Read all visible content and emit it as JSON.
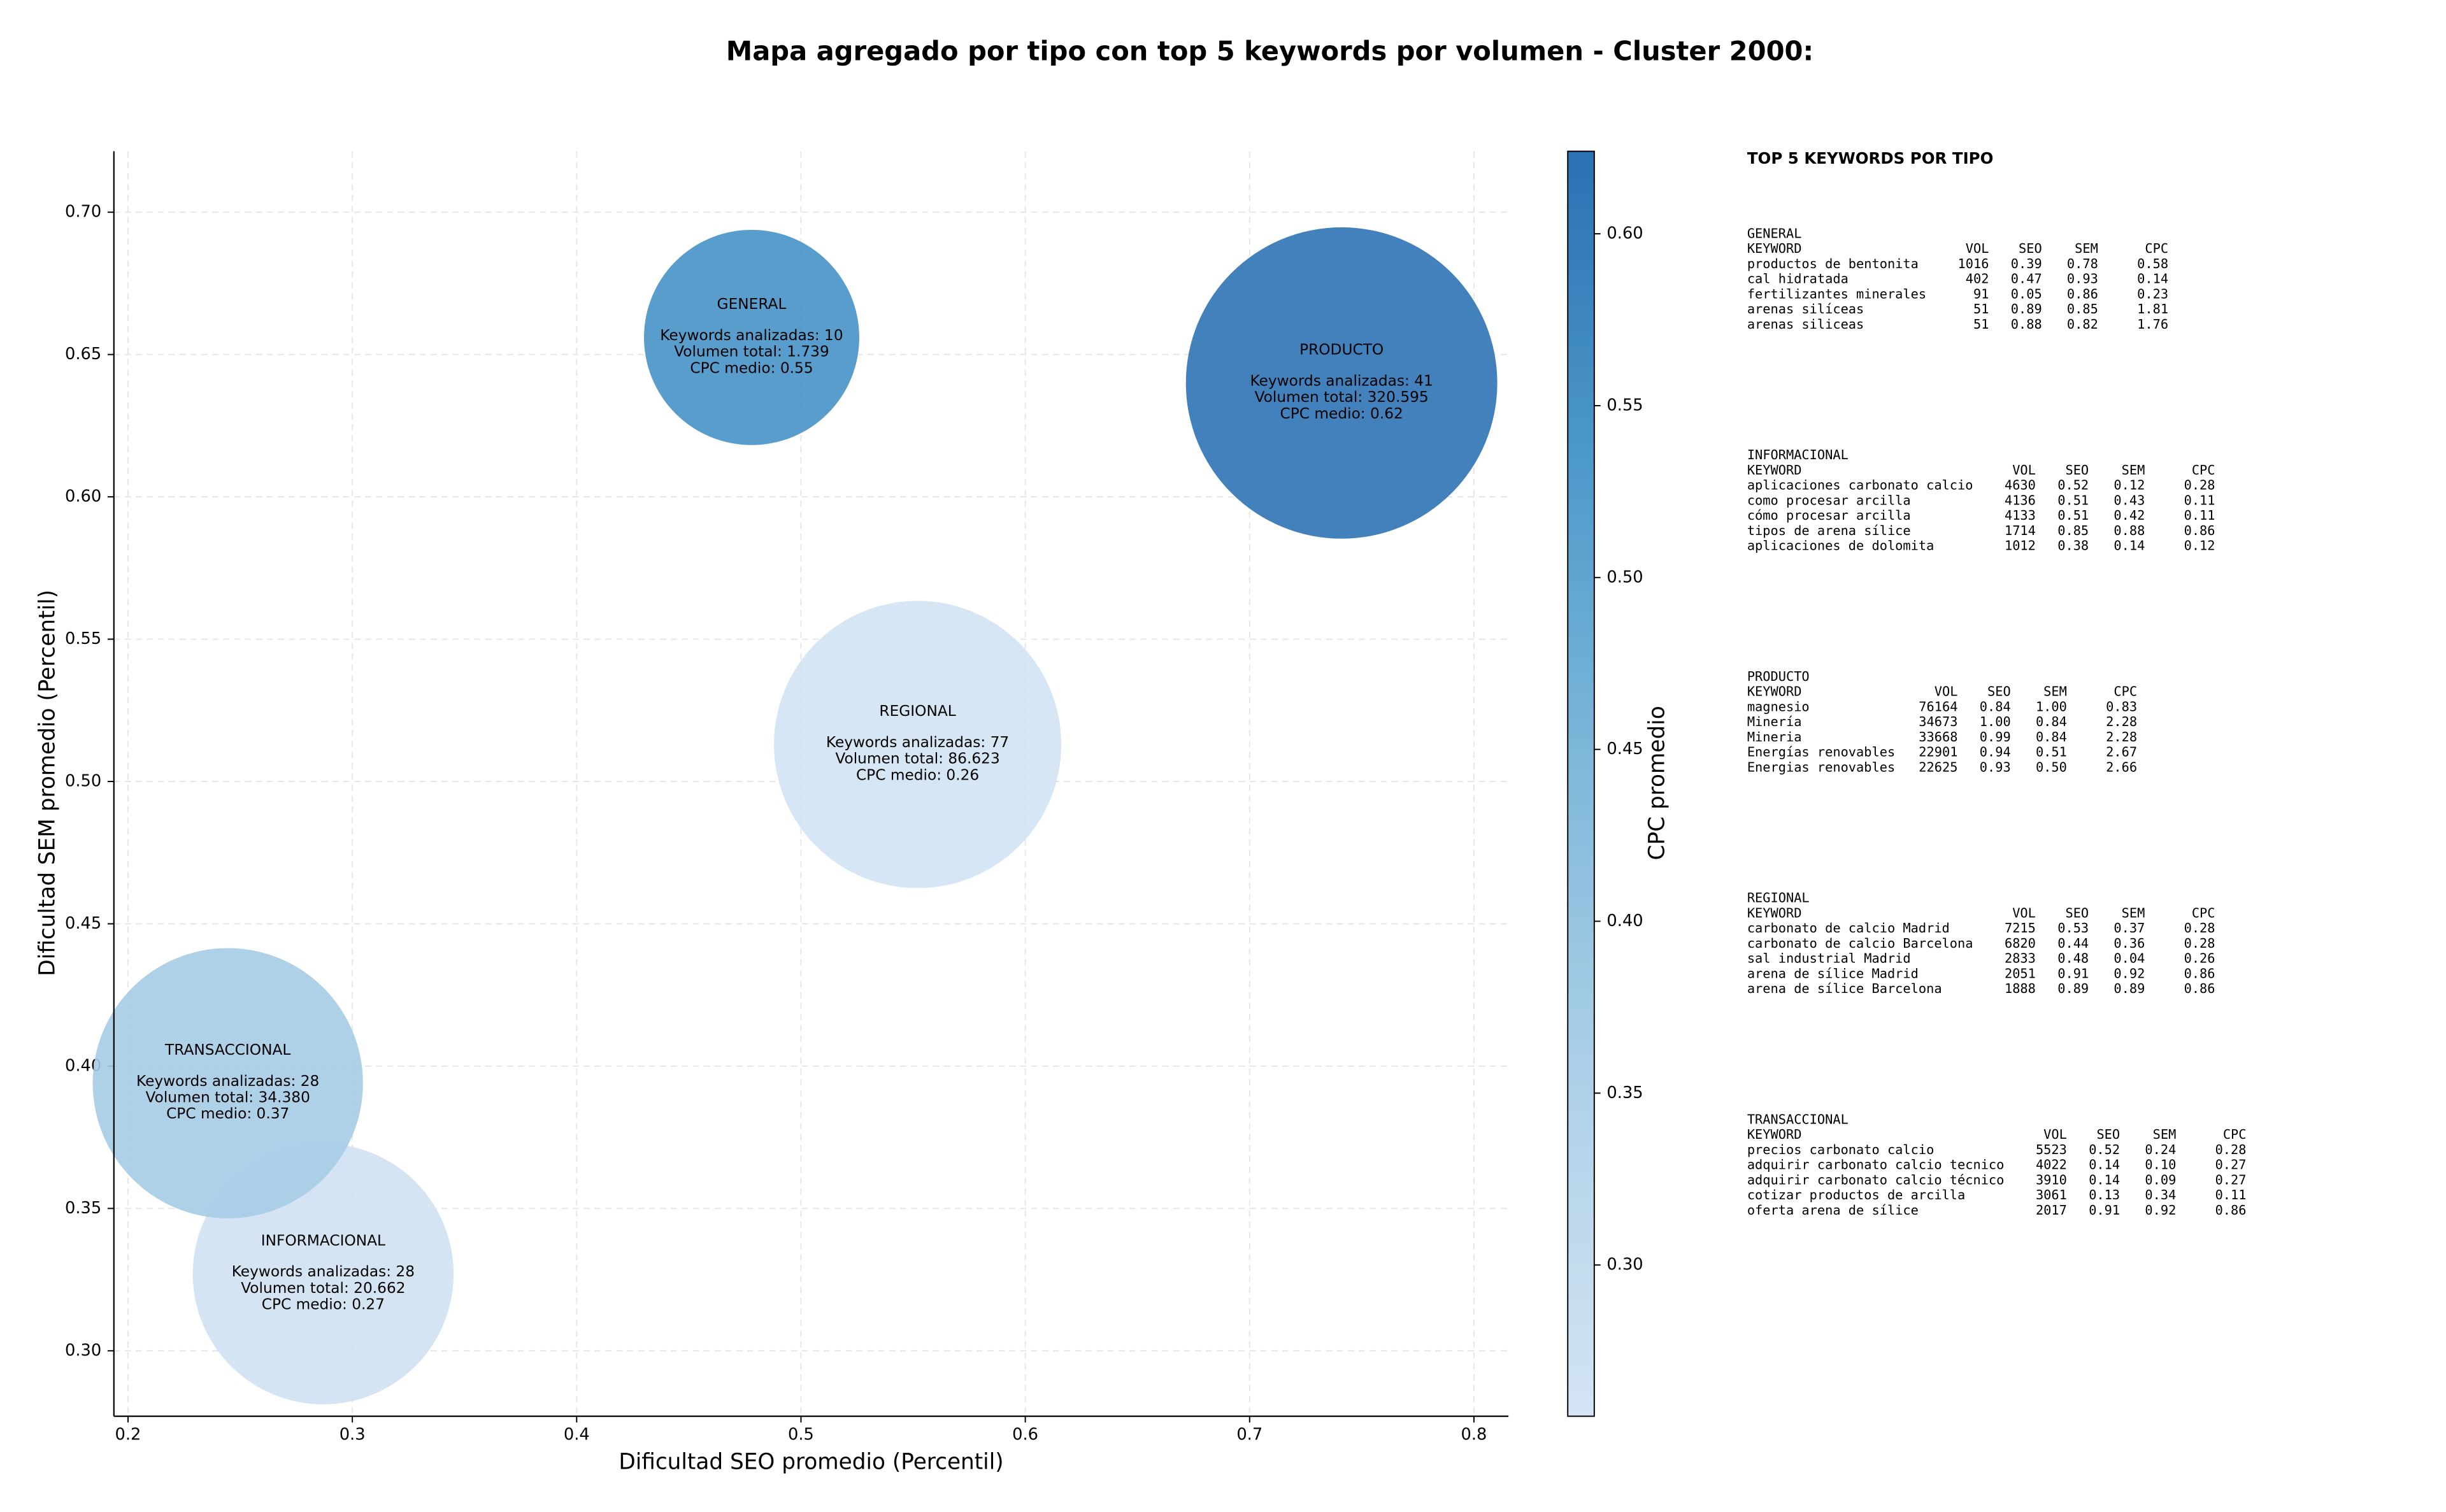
{
  "chart_data": {
    "type": "scatter",
    "title": "Mapa agregado por tipo con top 5 keywords por volumen - Cluster 2000:",
    "x_label": "Dificultad SEO promedio (Percentil)",
    "y_label": "Dificultad SEM promedio (Percentil)",
    "colorbar_label": "CPC promedio",
    "xlim": [
      0.1937,
      0.8154
    ],
    "ylim": [
      0.277,
      0.7214
    ],
    "clim": [
      0.256,
      0.624
    ],
    "xticks": [
      0.2,
      0.3,
      0.4,
      0.5,
      0.6,
      0.7,
      0.8
    ],
    "yticks": [
      {
        "value": 0.3,
        "label": "0.30"
      },
      0.35,
      {
        "value": 0.4,
        "label": "0.40"
      },
      0.45,
      {
        "value": 0.5,
        "label": "0.50"
      },
      0.55,
      {
        "value": 0.6,
        "label": "0.60"
      },
      0.65,
      {
        "value": 0.7,
        "label": "0.70"
      }
    ],
    "cticks": [
      {
        "value": 0.3,
        "label": "0.30"
      },
      0.35,
      {
        "value": 0.4,
        "label": "0.40"
      },
      0.45,
      {
        "value": 0.5,
        "label": "0.50"
      },
      0.55,
      {
        "value": 0.6,
        "label": "0.60"
      }
    ],
    "colorscale": [
      "#d4e4f4",
      "#b0d2e8",
      "#82badb",
      "#4e9acb",
      "#2b71b3"
    ],
    "grid": true,
    "size_scale": "log",
    "points": [
      {
        "name": "GENERAL",
        "x": 0.478,
        "y": 0.656,
        "size": 1739,
        "cpc": 0.55,
        "text": [
          "Keywords analizadas: 10",
          "Volumen total: 1.739",
          "CPC medio: 0.55"
        ]
      },
      {
        "name": "INFORMACIONAL",
        "x": 0.287,
        "y": 0.327,
        "size": 20662,
        "cpc": 0.27,
        "text": [
          "Keywords analizadas: 28",
          "Volumen total: 20.662",
          "CPC medio: 0.27"
        ]
      },
      {
        "name": "PRODUCTO",
        "x": 0.741,
        "y": 0.64,
        "size": 320595,
        "cpc": 0.62,
        "text": [
          "Keywords analizadas: 41",
          "Volumen total: 320.595",
          "CPC medio: 0.62"
        ]
      },
      {
        "name": "REGIONAL",
        "x": 0.552,
        "y": 0.513,
        "size": 86623,
        "cpc": 0.26,
        "text": [
          "Keywords analizadas: 77",
          "Volumen total: 86.623",
          "CPC medio: 0.26"
        ]
      },
      {
        "name": "TRANSACCIONAL",
        "x": 0.2445,
        "y": 0.394,
        "size": 34380,
        "cpc": 0.37,
        "text": [
          "Keywords analizadas: 28",
          "Volumen total: 34.380",
          "CPC medio: 0.37"
        ]
      }
    ]
  },
  "panel": {
    "title": "TOP 5 KEYWORDS POR TIPO",
    "columns": [
      "KEYWORD",
      "VOL",
      "SEO",
      "SEM",
      "CPC"
    ],
    "blocks": [
      {
        "name": "GENERAL",
        "rows": [
          [
            "productos de bentonita",
            "1016",
            "0.39",
            "0.78",
            "0.58"
          ],
          [
            "cal hidratada",
            "402",
            "0.47",
            "0.93",
            "0.14"
          ],
          [
            "fertilizantes minerales",
            "91",
            "0.05",
            "0.86",
            "0.23"
          ],
          [
            "arenas silíceas",
            "51",
            "0.89",
            "0.85",
            "1.81"
          ],
          [
            "arenas siliceas",
            "51",
            "0.88",
            "0.82",
            "1.76"
          ]
        ]
      },
      {
        "name": "INFORMACIONAL",
        "rows": [
          [
            "aplicaciones carbonato calcio",
            "4630",
            "0.52",
            "0.12",
            "0.28"
          ],
          [
            "como procesar arcilla",
            "4136",
            "0.51",
            "0.43",
            "0.11"
          ],
          [
            "cómo procesar arcilla",
            "4133",
            "0.51",
            "0.42",
            "0.11"
          ],
          [
            "tipos de arena sílice",
            "1714",
            "0.85",
            "0.88",
            "0.86"
          ],
          [
            "aplicaciones de dolomita",
            "1012",
            "0.38",
            "0.14",
            "0.12"
          ]
        ]
      },
      {
        "name": "PRODUCTO",
        "rows": [
          [
            "magnesio",
            "76164",
            "0.84",
            "1.00",
            "0.83"
          ],
          [
            "Minería",
            "34673",
            "1.00",
            "0.84",
            "2.28"
          ],
          [
            "Mineria",
            "33668",
            "0.99",
            "0.84",
            "2.28"
          ],
          [
            "Energías renovables",
            "22901",
            "0.94",
            "0.51",
            "2.67"
          ],
          [
            "Energias renovables",
            "22625",
            "0.93",
            "0.50",
            "2.66"
          ]
        ]
      },
      {
        "name": "REGIONAL",
        "rows": [
          [
            "carbonato de calcio Madrid",
            "7215",
            "0.53",
            "0.37",
            "0.28"
          ],
          [
            "carbonato de calcio Barcelona",
            "6820",
            "0.44",
            "0.36",
            "0.28"
          ],
          [
            "sal industrial Madrid",
            "2833",
            "0.48",
            "0.04",
            "0.26"
          ],
          [
            "arena de sílice Madrid",
            "2051",
            "0.91",
            "0.92",
            "0.86"
          ],
          [
            "arena de sílice Barcelona",
            "1888",
            "0.89",
            "0.89",
            "0.86"
          ]
        ]
      },
      {
        "name": "TRANSACCIONAL",
        "rows": [
          [
            "precios carbonato calcio",
            "5523",
            "0.52",
            "0.24",
            "0.28"
          ],
          [
            "adquirir carbonato calcio tecnico",
            "4022",
            "0.14",
            "0.10",
            "0.27"
          ],
          [
            "adquirir carbonato calcio técnico",
            "3910",
            "0.14",
            "0.09",
            "0.27"
          ],
          [
            "cotizar productos de arcilla",
            "3061",
            "0.13",
            "0.34",
            "0.11"
          ],
          [
            "oferta arena de sílice",
            "2017",
            "0.91",
            "0.92",
            "0.86"
          ]
        ]
      }
    ]
  }
}
